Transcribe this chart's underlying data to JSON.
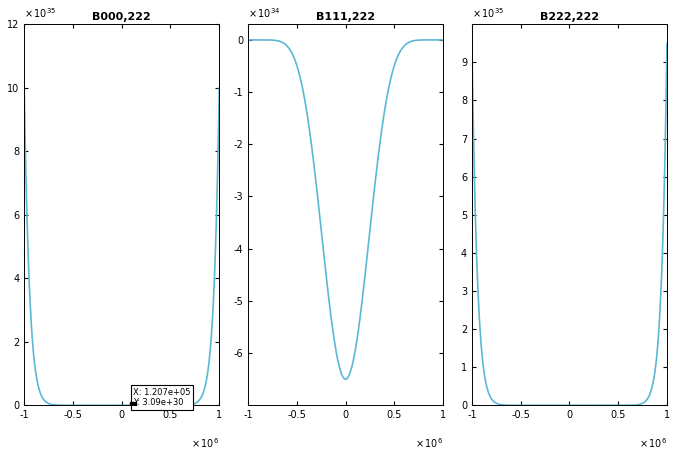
{
  "title1": "B000,222",
  "title2": "B111,222",
  "title3": "B222,222",
  "line_color": "#5bb8d4",
  "line_width": 1.2,
  "bg_color": "#ffffff",
  "xlim": [
    -1000000.0,
    1000000.0
  ],
  "ylim1": [
    0,
    1.2e+36
  ],
  "ylim2": [
    -7e+34,
    3e+33
  ],
  "ylim3": [
    0,
    1e+36
  ],
  "yticks1": [
    0,
    2e+35,
    4e+35,
    6e+35,
    8e+35,
    1e+36,
    1.2e+36
  ],
  "yticks2": [
    -6e+34,
    -5e+34,
    -4e+34,
    -3e+34,
    -2e+34,
    -1e+34,
    0
  ],
  "yticks3": [
    0,
    1e+35,
    2e+35,
    3e+35,
    4e+35,
    5e+35,
    6e+35,
    7e+35,
    8e+35,
    9e+35
  ],
  "xticks": [
    -1000000.0,
    -500000.0,
    0,
    500000.0,
    1000000.0
  ],
  "xtick_labels": [
    "-1",
    "-0.5",
    "0",
    "0.5",
    "1"
  ],
  "power_ud": 36,
  "scale0": 1e+36,
  "scale1": -6.5e+34,
  "scale2": 9.5e+35,
  "arch_power": 9,
  "ann_x": 120700,
  "ann_y": 3.09e+30,
  "fig_width": 6.77,
  "fig_height": 4.54,
  "dpi": 100
}
